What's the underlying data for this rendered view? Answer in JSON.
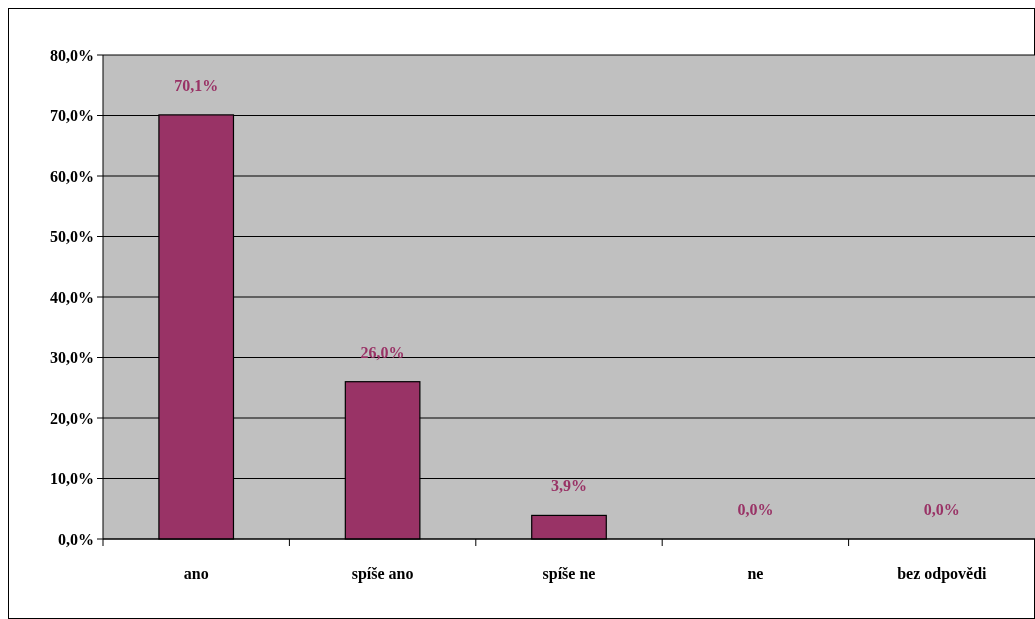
{
  "chart_data": {
    "type": "bar",
    "categories": [
      "ano",
      "spíše ano",
      "spíše ne",
      "ne",
      "bez odpovědi"
    ],
    "values": [
      70.1,
      26.0,
      3.9,
      0.0,
      0.0
    ],
    "color": "#993366",
    "value_labels": [
      "70,1%",
      "26,0%",
      "3,9%",
      "0,0%",
      "0,0%"
    ],
    "ylim": [
      0,
      80
    ],
    "yticks": [
      {
        "value": 0,
        "label": "0,0%"
      },
      {
        "value": 10,
        "label": "10,0%"
      },
      {
        "value": 20,
        "label": "20,0%"
      },
      {
        "value": 30,
        "label": "30,0%"
      },
      {
        "value": 40,
        "label": "40,0%"
      },
      {
        "value": 50,
        "label": "50,0%"
      },
      {
        "value": 60,
        "label": "60,0%"
      },
      {
        "value": 70,
        "label": "70,0%"
      },
      {
        "value": 80,
        "label": "80,0%"
      }
    ],
    "grid": "y"
  }
}
